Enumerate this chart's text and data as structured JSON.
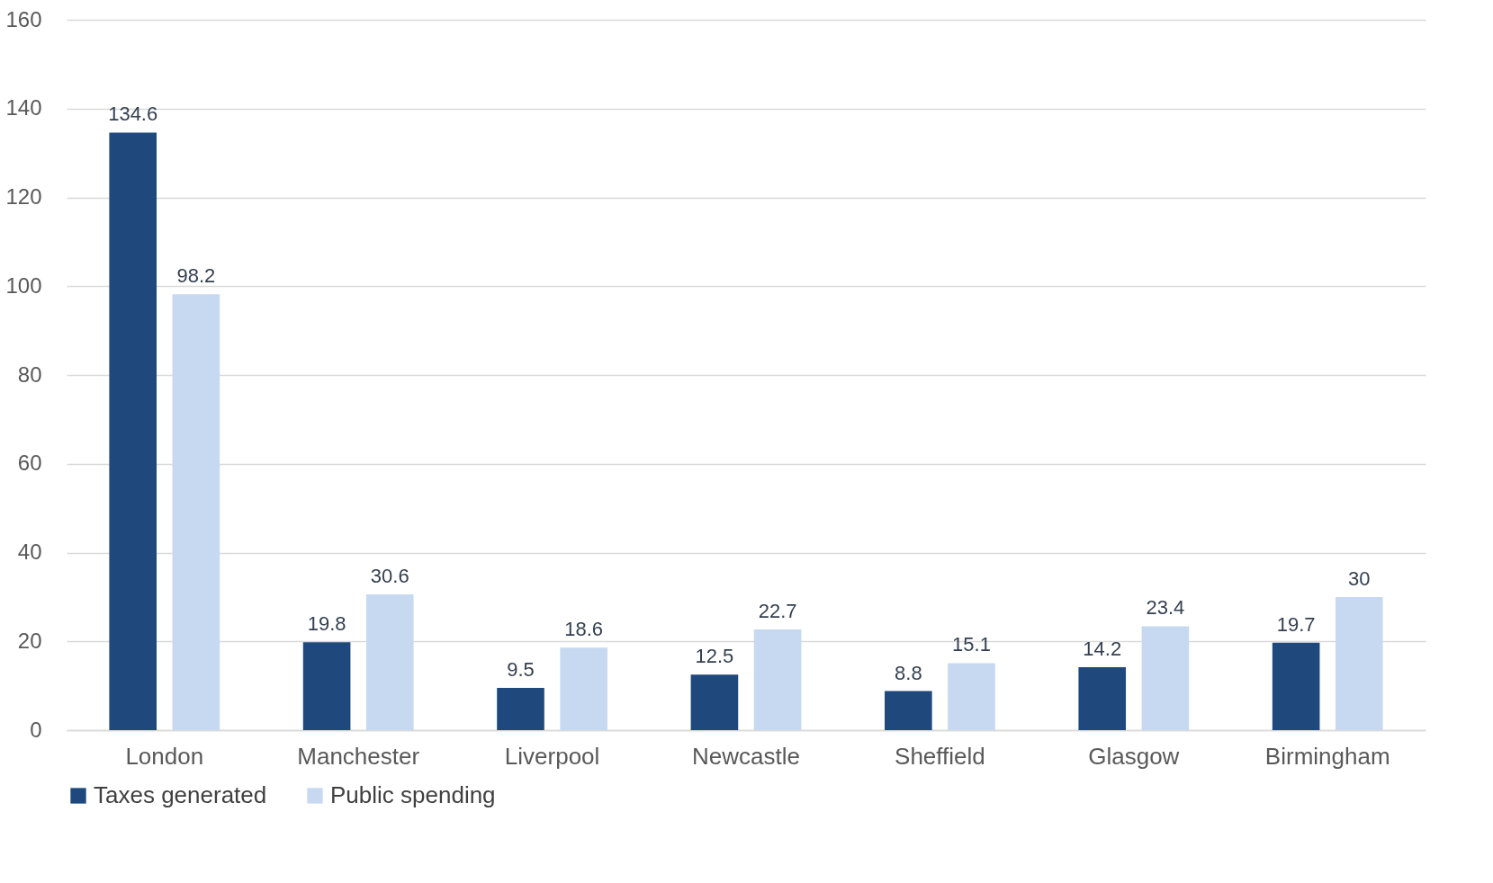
{
  "chart_data": {
    "type": "bar",
    "categories": [
      "London",
      "Manchester",
      "Liverpool",
      "Newcastle",
      "Sheffield",
      "Glasgow",
      "Birmingham"
    ],
    "series": [
      {
        "name": "Taxes generated",
        "color": "#1f497d",
        "values": [
          134.6,
          19.8,
          9.5,
          12.5,
          8.8,
          14.2,
          19.7
        ]
      },
      {
        "name": "Public spending",
        "color": "#c6d9f1",
        "values": [
          98.2,
          30.6,
          18.6,
          22.7,
          15.1,
          23.4,
          30
        ]
      }
    ],
    "ylim": [
      0,
      160
    ],
    "yticks": [
      0,
      20,
      40,
      60,
      80,
      100,
      120,
      140,
      160
    ],
    "grid": "y",
    "legend": "bottom",
    "data_labels": true
  }
}
